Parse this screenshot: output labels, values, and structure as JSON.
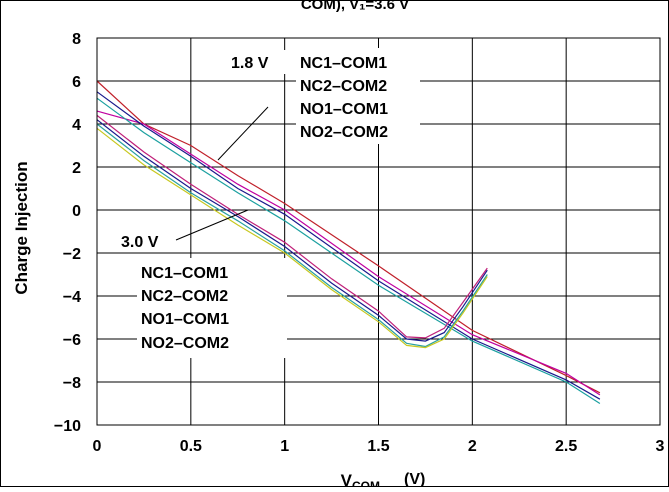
{
  "chart_data": {
    "type": "line",
    "title": "COM), V₁=3.6 V",
    "xlabel": "V",
    "xlabel_sub": "COM",
    "xlabel_unit": "(V)",
    "ylabel": "Charge Injection",
    "xlim": [
      0,
      3
    ],
    "ylim": [
      -10,
      8
    ],
    "x_ticks": [
      "0",
      "0.5",
      "1",
      "1.5",
      "2",
      "2.5",
      "3"
    ],
    "y_ticks": [
      "−10",
      "−8",
      "−6",
      "−4",
      "−2",
      "0",
      "2",
      "4",
      "6",
      "8"
    ],
    "grid": true,
    "annotations": {
      "group_1_8v": {
        "voltage": "1.8 V",
        "lines": [
          "NC1–COM1",
          "NC2–COM2",
          "NO1–COM1",
          "NO2–COM2"
        ]
      },
      "group_3_0v": {
        "voltage": "3.0 V",
        "lines": [
          "NC1–COM1",
          "NC2–COM2",
          "NO1–COM1",
          "NO2–COM2"
        ]
      }
    },
    "series": [
      {
        "group": "1.8 V",
        "color": "#c0202a",
        "points": [
          [
            0,
            6.0
          ],
          [
            0.25,
            4.0
          ],
          [
            0.5,
            3.0
          ],
          [
            0.75,
            1.6
          ],
          [
            1.0,
            0.3
          ],
          [
            1.5,
            -2.6
          ],
          [
            2.0,
            -5.6
          ],
          [
            2.5,
            -7.7
          ],
          [
            2.68,
            -8.5
          ]
        ]
      },
      {
        "group": "1.8 V",
        "color": "#c000a0",
        "points": [
          [
            0,
            4.6
          ],
          [
            0.25,
            4.0
          ],
          [
            0.5,
            2.6
          ],
          [
            0.75,
            1.2
          ],
          [
            1.0,
            0.0
          ],
          [
            1.5,
            -3.1
          ],
          [
            2.0,
            -5.8
          ],
          [
            2.5,
            -7.6
          ],
          [
            2.68,
            -8.6
          ]
        ]
      },
      {
        "group": "1.8 V",
        "color": "#1a1a8c",
        "points": [
          [
            0,
            5.5
          ],
          [
            0.25,
            3.9
          ],
          [
            0.5,
            2.5
          ],
          [
            0.75,
            1.0
          ],
          [
            1.0,
            -0.2
          ],
          [
            1.5,
            -3.3
          ],
          [
            2.0,
            -6.0
          ],
          [
            2.5,
            -7.9
          ],
          [
            2.68,
            -8.8
          ]
        ]
      },
      {
        "group": "1.8 V",
        "color": "#1ba0a0",
        "points": [
          [
            0,
            5.2
          ],
          [
            0.25,
            3.6
          ],
          [
            0.5,
            2.2
          ],
          [
            0.75,
            0.8
          ],
          [
            1.0,
            -0.5
          ],
          [
            1.5,
            -3.5
          ],
          [
            2.0,
            -6.1
          ],
          [
            2.5,
            -8.0
          ],
          [
            2.68,
            -9.0
          ]
        ]
      },
      {
        "group": "3.0 V",
        "color": "#1a1a8c",
        "points": [
          [
            0,
            4.2
          ],
          [
            0.25,
            2.5
          ],
          [
            0.5,
            1.0
          ],
          [
            0.75,
            -0.3
          ],
          [
            1.0,
            -1.7
          ],
          [
            1.25,
            -3.4
          ],
          [
            1.5,
            -4.9
          ],
          [
            1.65,
            -6.0
          ],
          [
            1.75,
            -6.1
          ],
          [
            1.85,
            -5.7
          ],
          [
            1.95,
            -4.5
          ],
          [
            2.08,
            -2.8
          ]
        ]
      },
      {
        "group": "3.0 V",
        "color": "#2aa0a0",
        "points": [
          [
            0,
            4.0
          ],
          [
            0.25,
            2.3
          ],
          [
            0.5,
            0.8
          ],
          [
            0.75,
            -0.5
          ],
          [
            1.0,
            -1.9
          ],
          [
            1.25,
            -3.6
          ],
          [
            1.5,
            -5.1
          ],
          [
            1.65,
            -6.2
          ],
          [
            1.75,
            -6.35
          ],
          [
            1.85,
            -5.9
          ],
          [
            1.95,
            -4.7
          ],
          [
            2.08,
            -3.0
          ]
        ]
      },
      {
        "group": "3.0 V",
        "color": "#c8c820",
        "points": [
          [
            0,
            3.8
          ],
          [
            0.25,
            2.1
          ],
          [
            0.5,
            0.7
          ],
          [
            0.75,
            -0.7
          ],
          [
            1.0,
            -2.0
          ],
          [
            1.25,
            -3.7
          ],
          [
            1.5,
            -5.2
          ],
          [
            1.65,
            -6.3
          ],
          [
            1.75,
            -6.4
          ],
          [
            1.85,
            -6.0
          ],
          [
            1.95,
            -4.8
          ],
          [
            2.08,
            -3.1
          ]
        ]
      },
      {
        "group": "3.0 V",
        "color": "#c0207a",
        "points": [
          [
            0,
            4.4
          ],
          [
            0.25,
            2.7
          ],
          [
            0.5,
            1.2
          ],
          [
            0.75,
            -0.2
          ],
          [
            1.0,
            -1.5
          ],
          [
            1.25,
            -3.2
          ],
          [
            1.5,
            -4.7
          ],
          [
            1.65,
            -5.9
          ],
          [
            1.75,
            -5.95
          ],
          [
            1.85,
            -5.5
          ],
          [
            1.95,
            -4.3
          ],
          [
            2.08,
            -2.7
          ]
        ]
      }
    ]
  }
}
